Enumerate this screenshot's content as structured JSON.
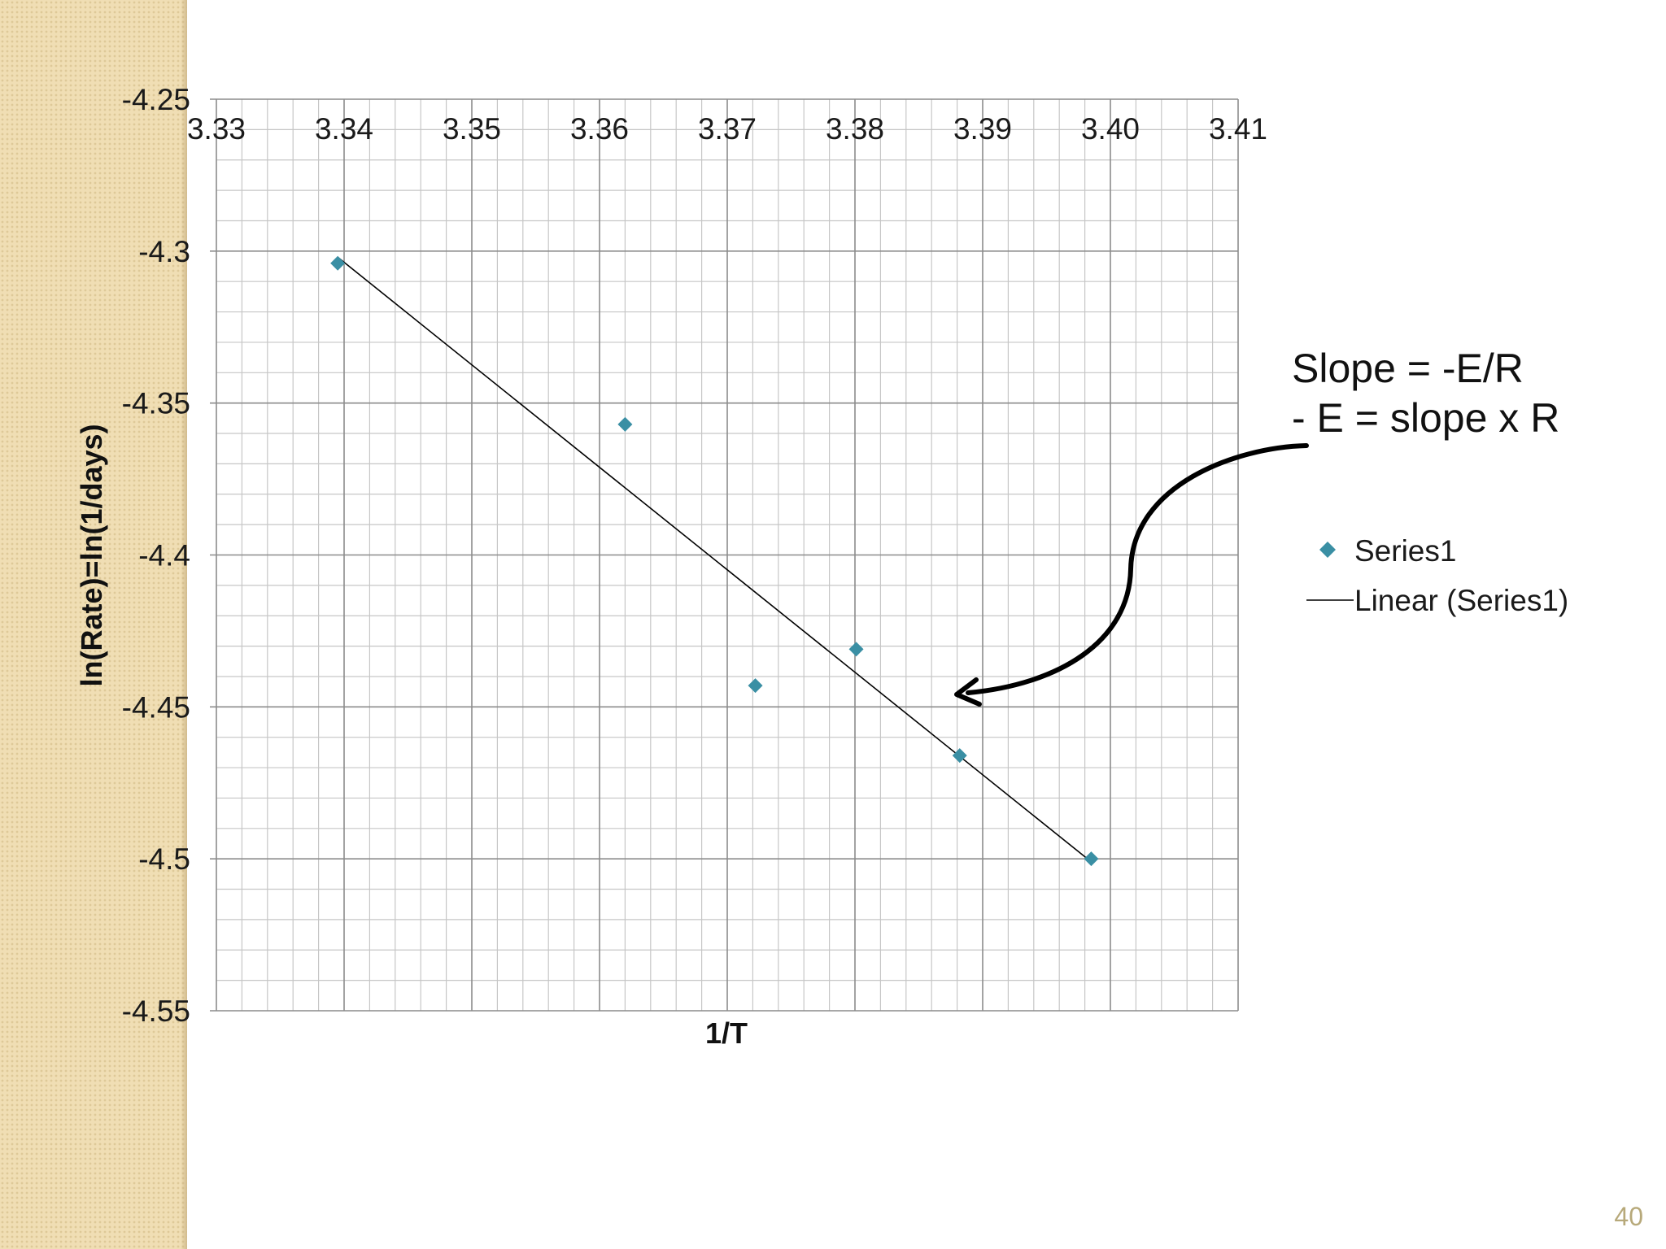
{
  "slide": {
    "page_number": "40"
  },
  "annotation": {
    "line1": "Slope = -E/R",
    "line2": "- E = slope x R"
  },
  "colors": {
    "marker": "#3a8fa4",
    "trendline": "#000000",
    "grid_major": "#8c8c8c",
    "grid_minor": "#c6c6c6",
    "side_band": "#f0deb4"
  },
  "chart_data": {
    "type": "scatter",
    "title": "",
    "xlabel": "1/T",
    "ylabel": "ln(Rate)=ln(1/days)",
    "xlim": [
      3.33,
      3.41
    ],
    "ylim": [
      -4.55,
      -4.25
    ],
    "x_ticks": [
      "3.33",
      "3.34",
      "3.35",
      "3.36",
      "3.37",
      "3.38",
      "3.39",
      "3.40",
      "3.41"
    ],
    "y_ticks": [
      "-4.25",
      "-4.3",
      "-4.35",
      "-4.4",
      "-4.45",
      "-4.5",
      "-4.55"
    ],
    "x_tick_values": [
      3.33,
      3.34,
      3.35,
      3.36,
      3.37,
      3.38,
      3.39,
      3.4,
      3.41
    ],
    "y_tick_values": [
      -4.25,
      -4.3,
      -4.35,
      -4.4,
      -4.45,
      -4.5,
      -4.55
    ],
    "x_axis_position": "top",
    "grid": true,
    "minor_grid": true,
    "legend_position": "right",
    "series": [
      {
        "name": "Series1",
        "marker": "diamond",
        "points": [
          {
            "x": 3.3395,
            "y": -4.304
          },
          {
            "x": 3.362,
            "y": -4.357
          },
          {
            "x": 3.3722,
            "y": -4.443
          },
          {
            "x": 3.3801,
            "y": -4.431
          },
          {
            "x": 3.3882,
            "y": -4.466
          },
          {
            "x": 3.3985,
            "y": -4.5
          }
        ]
      }
    ],
    "trendline": {
      "name": "Linear (Series1)",
      "type": "linear",
      "from": {
        "x": 3.3395,
        "y": -4.302
      },
      "to": {
        "x": 3.3985,
        "y": -4.501
      }
    }
  }
}
